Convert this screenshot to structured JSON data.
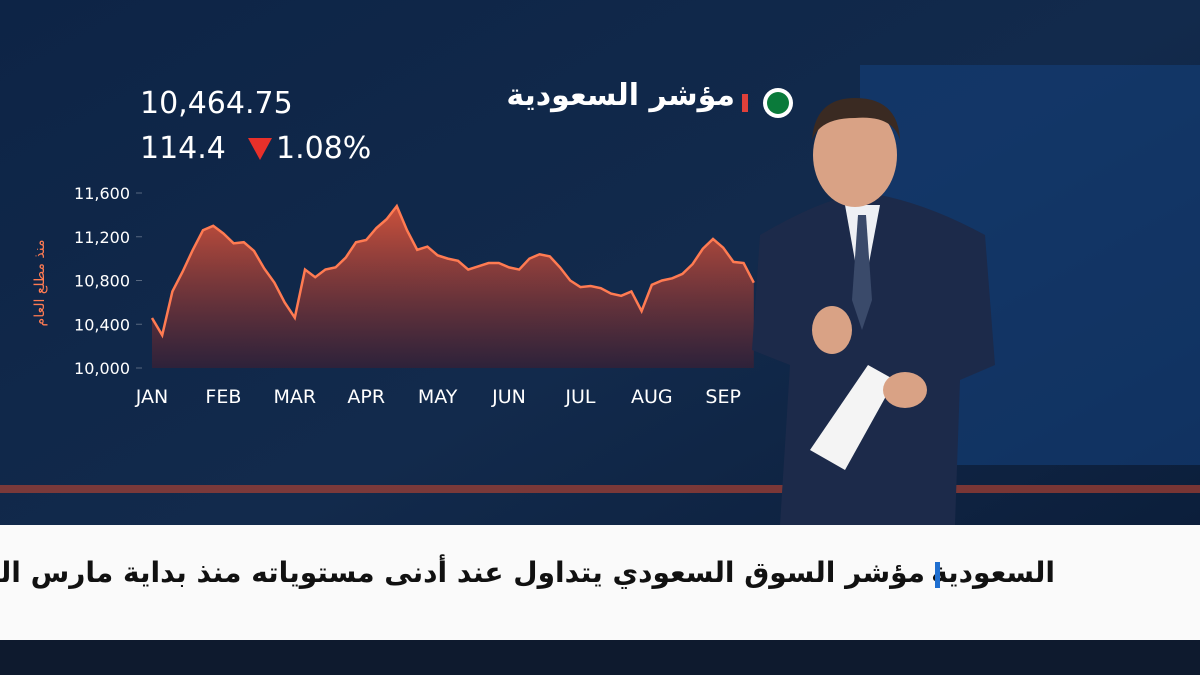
{
  "chart_data": {
    "type": "area",
    "title": "مؤشر السعودية",
    "index_value": "10,464.75",
    "change": "114.4",
    "change_percent": "1.08%",
    "y_label": "منذ مطلع العام",
    "categories": [
      "JAN",
      null,
      null,
      null,
      null,
      null,
      null,
      "FEB",
      null,
      null,
      null,
      null,
      null,
      null,
      "MAR",
      null,
      null,
      null,
      null,
      null,
      null,
      "APR",
      null,
      null,
      null,
      null,
      null,
      null,
      "MAY",
      null,
      null,
      null,
      null,
      null,
      null,
      "JUN",
      null,
      null,
      null,
      null,
      null,
      null,
      "JUL",
      null,
      null,
      null,
      null,
      null,
      null,
      "AUG",
      null,
      null,
      null,
      null,
      null,
      null,
      "SEP",
      null,
      null,
      null
    ],
    "values": [
      10457,
      10300,
      10700,
      10880,
      11080,
      11260,
      11300,
      11230,
      11140,
      11150,
      11070,
      10910,
      10780,
      10600,
      10460,
      10900,
      10830,
      10900,
      10920,
      11010,
      11150,
      11170,
      11280,
      11360,
      11480,
      11260,
      11080,
      11110,
      11030,
      11000,
      10980,
      10900,
      10930,
      10960,
      10960,
      10920,
      10900,
      11000,
      11040,
      11020,
      10920,
      10800,
      10740,
      10750,
      10730,
      10680,
      10660,
      10700,
      10520,
      10760,
      10800,
      10820,
      10860,
      10950,
      11090,
      11180,
      11100,
      10970,
      10960,
      10780
    ],
    "color": "#ff7b52",
    "ylim": [
      10000,
      11600
    ],
    "yticks": [
      {
        "value": 10000,
        "label": "10,000"
      },
      {
        "value": 10400,
        "label": "10,400"
      },
      {
        "value": 10800,
        "label": "10,800"
      },
      {
        "value": 11200,
        "label": "11,200"
      },
      {
        "value": 11600,
        "label": "11,600"
      }
    ]
  },
  "ticker": {
    "label": "السعودية",
    "headline": "مؤشر السوق السعودي يتداول عند أدنى مستوياته منذ بداية مارس الماضي"
  }
}
